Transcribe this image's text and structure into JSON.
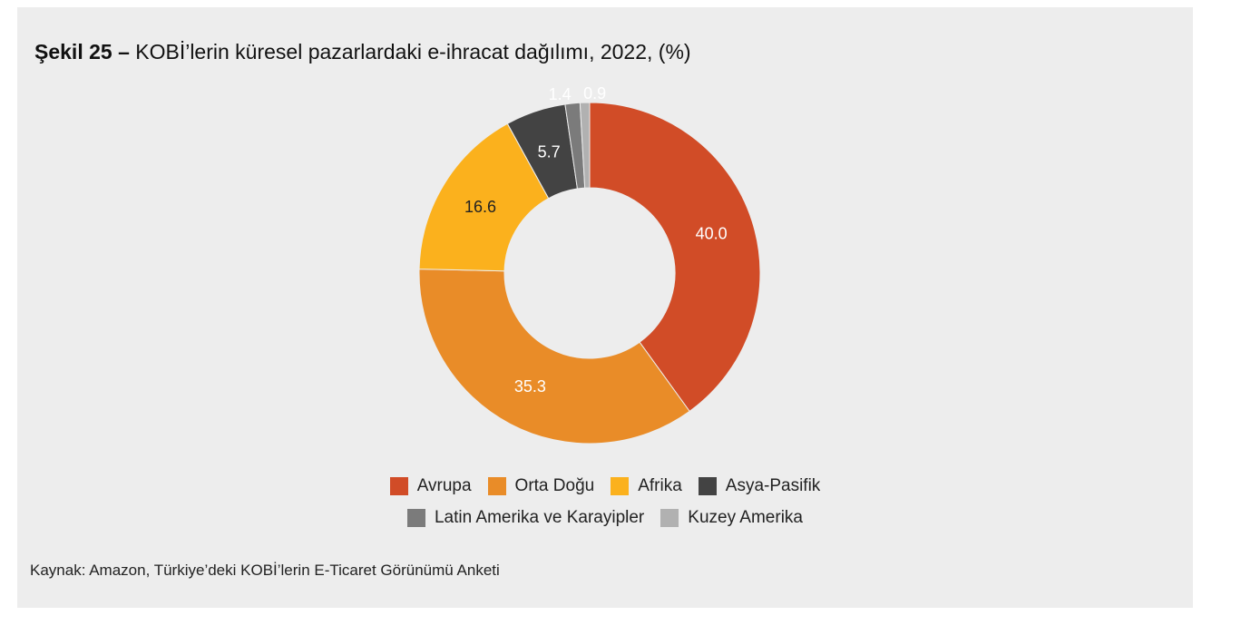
{
  "title": {
    "figure_number": "Şekil 25 –",
    "text": "KOBİ’lerin küresel pazarlardaki e-ihracat dağılımı, 2022, (%)"
  },
  "source": "Kaynak: Amazon, Türkiye’deki KOBİ’lerin E-Ticaret Görünümü Anketi",
  "chart_data": {
    "type": "pie",
    "variant": "donut",
    "start_angle_deg": 0,
    "direction": "clockwise",
    "legend_placement": "bottom",
    "series": [
      {
        "name": "Avrupa",
        "value": 40.0,
        "label": "40.0",
        "color": "#d14c27",
        "label_color": "#ffffff"
      },
      {
        "name": "Orta Doğu",
        "value": 35.3,
        "label": "35.3",
        "color": "#e98c28",
        "label_color": "#ffffff"
      },
      {
        "name": "Afrika",
        "value": 16.6,
        "label": "16.6",
        "color": "#fbb11d",
        "label_color": "#222222"
      },
      {
        "name": "Asya-Pasifik",
        "value": 5.7,
        "label": "5.7",
        "color": "#434343",
        "label_color": "#ffffff"
      },
      {
        "name": "Latin Amerika ve Karayipler",
        "value": 1.4,
        "label": "1.4",
        "color": "#7b7b7b",
        "label_color": "#ffffff"
      },
      {
        "name": "Kuzey Amerika",
        "value": 0.9,
        "label": "0.9",
        "color": "#b1b1b1",
        "label_color": "#ffffff"
      }
    ]
  }
}
